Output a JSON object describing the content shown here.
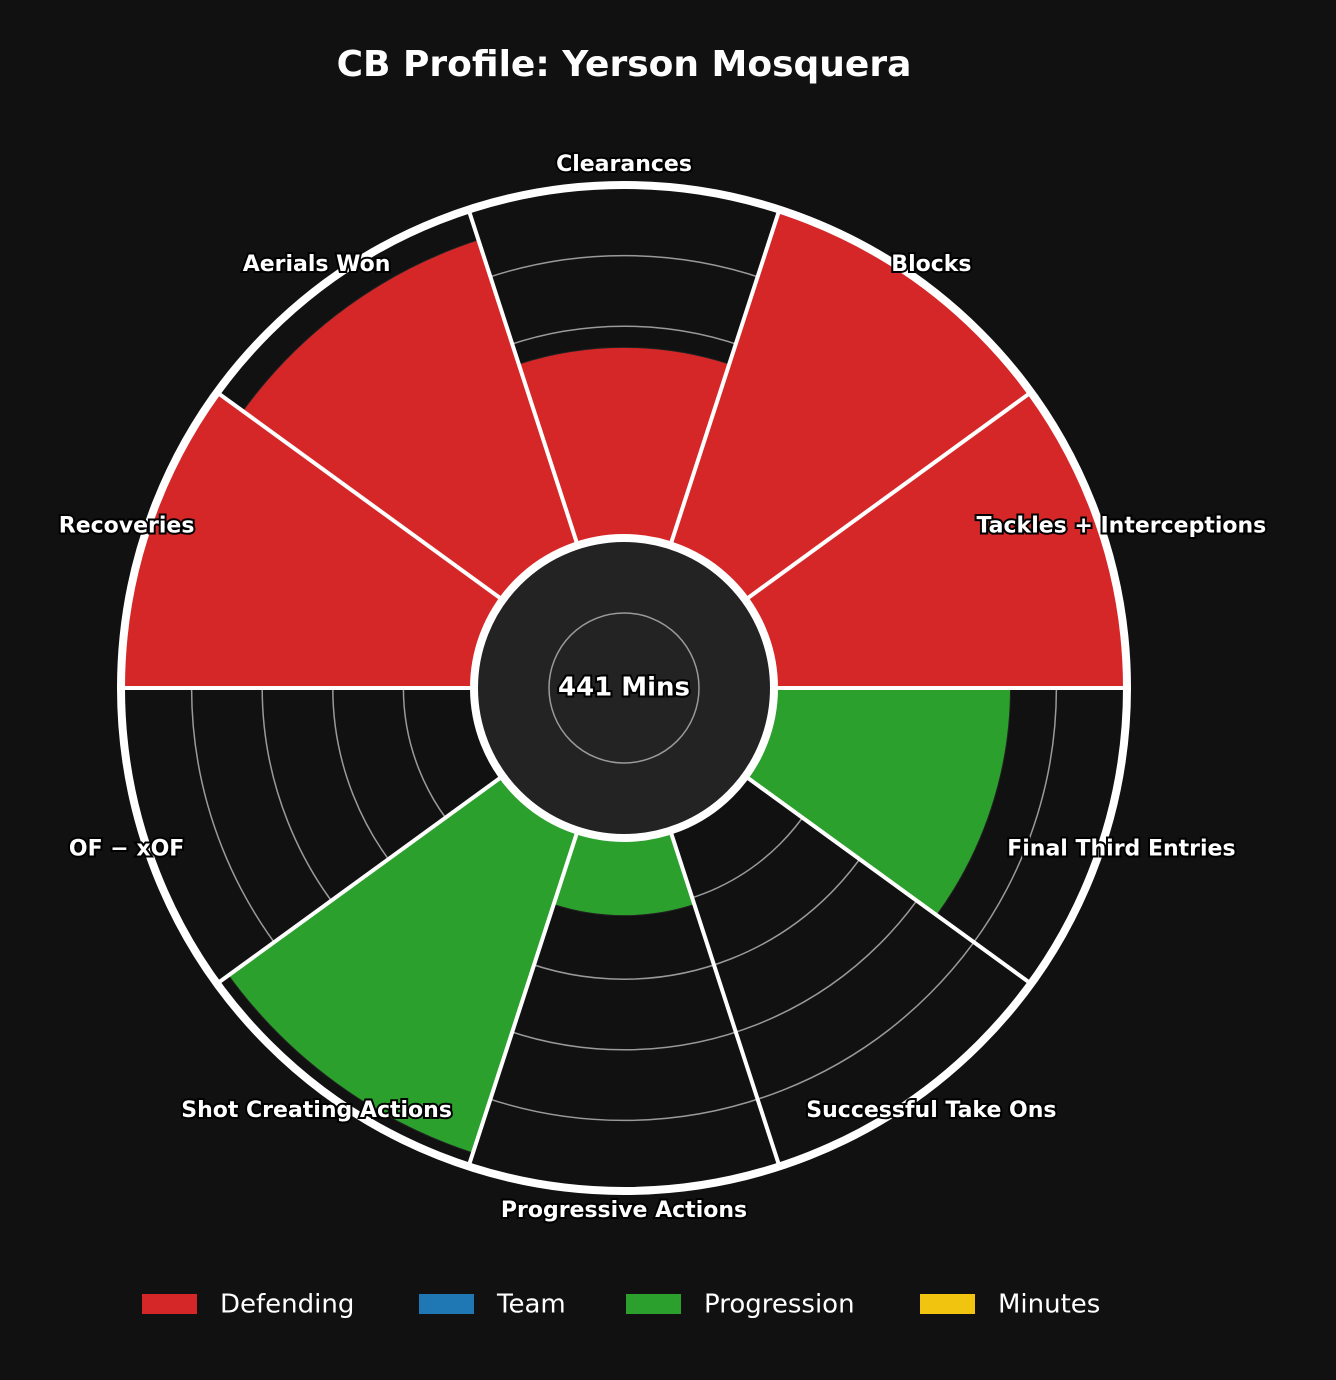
{
  "chart_data": {
    "type": "polar_bar",
    "title": "CB Profile: Yerson Mosquera",
    "center_label": "441 Mins",
    "categories": [
      "Clearances",
      "Blocks",
      "Tackles + Interceptions",
      "Final Third Entries",
      "Successful Take Ons",
      "Progressive Actions",
      "Shot Creating Actions",
      "OF − xOF",
      "Recoveries",
      "Aerials Won"
    ],
    "values": [
      54,
      100,
      100,
      67,
      0,
      22,
      96,
      0,
      100,
      91
    ],
    "colors": [
      "#d62728",
      "#d62728",
      "#d62728",
      "#2ca02c",
      "#2ca02c",
      "#2ca02c",
      "#2ca02c",
      "#2ca02c",
      "#d62728",
      "#d62728"
    ],
    "ylim": [
      0,
      100
    ],
    "yticks": [
      20,
      40,
      60,
      80
    ],
    "grid": true,
    "legend_position": "bottom",
    "legend": [
      {
        "name": "Defending",
        "color": "#d62728"
      },
      {
        "name": "Team",
        "color": "#1f77b4"
      },
      {
        "name": "Progression",
        "color": "#2ca02c"
      },
      {
        "name": "Minutes",
        "color": "#f1c40f"
      }
    ]
  }
}
